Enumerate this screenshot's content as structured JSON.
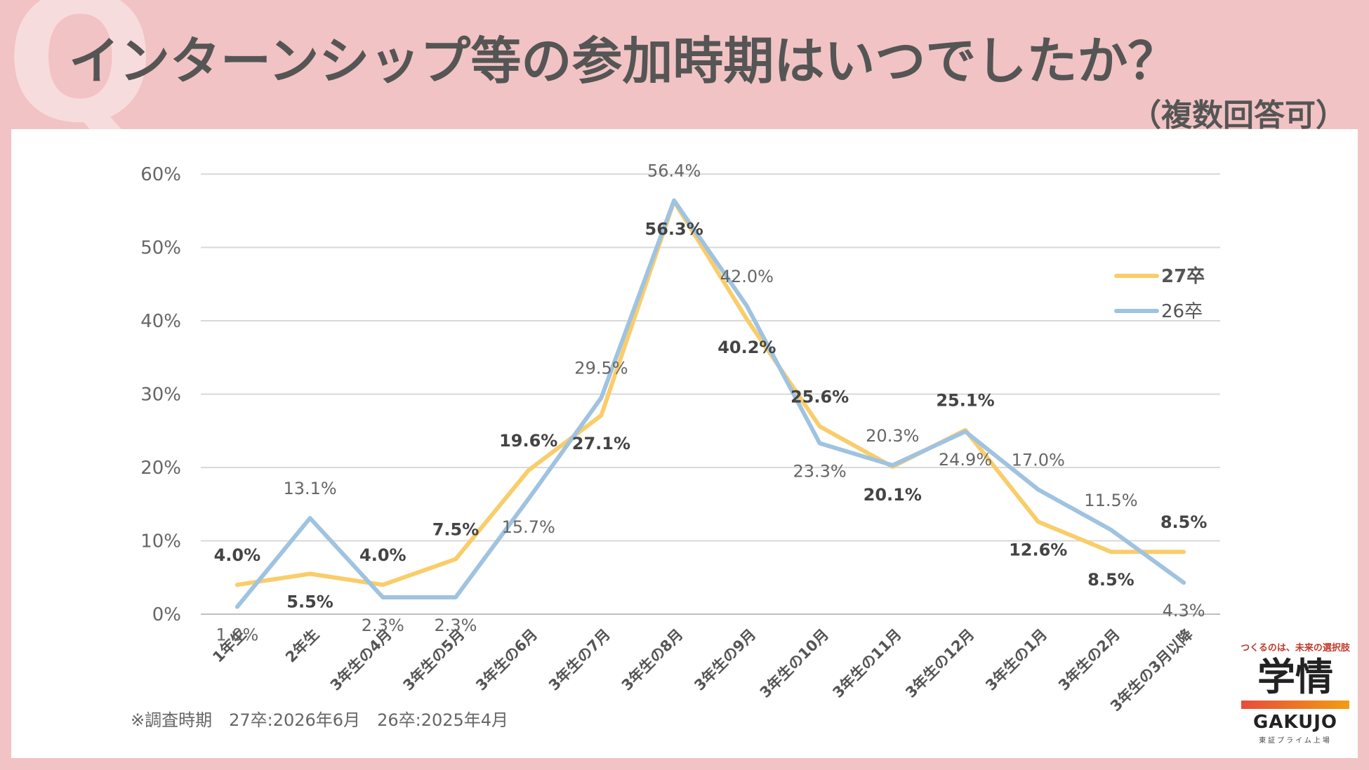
{
  "header": {
    "q_letter": "Q",
    "title": "インターンシップ等の参加時期はいつでしたか？",
    "subtitle": "（複数回答可）"
  },
  "chart_data": {
    "type": "line",
    "title": "インターンシップ等の参加時期はいつでしたか？",
    "subtitle": "（複数回答可）",
    "categories": [
      "1年生",
      "2年生",
      "3年生の4月",
      "3年生の5月",
      "3年生の6月",
      "3年生の7月",
      "3年生の8月",
      "3年生の9月",
      "3年生の10月",
      "3年生の11月",
      "3年生の12月",
      "3年生の1月",
      "3年生の2月",
      "3年生の3月以降"
    ],
    "yticks": [
      "0%",
      "10%",
      "20%",
      "30%",
      "40%",
      "50%",
      "60%"
    ],
    "ylim": [
      0,
      60
    ],
    "grid": true,
    "legend_position": "right",
    "series": [
      {
        "name": "27卒",
        "color": "#f9cd6a",
        "bold_labels": true,
        "values": [
          4.0,
          5.5,
          4.0,
          7.5,
          19.6,
          27.1,
          56.3,
          40.2,
          25.6,
          20.1,
          25.1,
          12.6,
          8.5,
          8.5
        ],
        "labels": [
          "4.0%",
          "5.5%",
          "4.0%",
          "7.5%",
          "19.6%",
          "27.1%",
          "56.3%",
          "40.2%",
          "25.6%",
          "20.1%",
          "25.1%",
          "12.6%",
          "8.5%",
          "8.5%"
        ]
      },
      {
        "name": "26卒",
        "color": "#9fc3e0",
        "bold_labels": false,
        "values": [
          1.0,
          13.1,
          2.3,
          2.3,
          15.7,
          29.5,
          56.4,
          42.0,
          23.3,
          20.3,
          24.9,
          17.0,
          11.5,
          4.3
        ],
        "labels": [
          "1.0%",
          "13.1%",
          "2.3%",
          "2.3%",
          "15.7%",
          "29.5%",
          "56.4%",
          "42.0%",
          "23.3%",
          "20.3%",
          "24.9%",
          "17.0%",
          "11.5%",
          "4.3%"
        ]
      }
    ]
  },
  "footnote": "※調査時期　27卒:2026年6月　26卒:2025年4月",
  "logo": {
    "tagline": "つくるのは、未来の選択肢",
    "mark": "学情",
    "name": "GAKUJO",
    "sub": "東証プライム上場"
  }
}
